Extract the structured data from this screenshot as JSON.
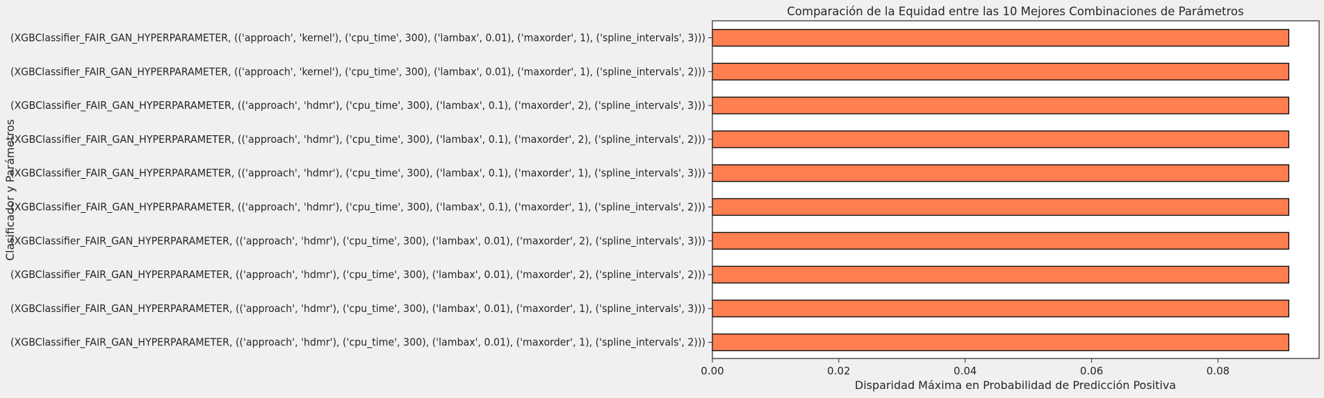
{
  "chart_data": {
    "type": "bar",
    "orientation": "horizontal",
    "title": "Comparación de la Equidad entre las 10 Mejores Combinaciones de Parámetros",
    "xlabel": "Disparidad Máxima en Probabilidad de Predicción Positiva",
    "ylabel": "Clasificador y Parámetros",
    "xlim": [
      0,
      0.096
    ],
    "xticks": [
      "0.00",
      "0.02",
      "0.04",
      "0.06",
      "0.08"
    ],
    "xtick_values": [
      0,
      0.02,
      0.04,
      0.06,
      0.08
    ],
    "grid": false,
    "bar_color": "#ff7f50",
    "bar_edge_color": "#000000",
    "categories": [
      "(XGBClassifier_FAIR_GAN_HYPERPARAMETER, (('approach', 'kernel'), ('cpu_time', 300), ('lambax', 0.01), ('maxorder', 1), ('spline_intervals', 3)))",
      "(XGBClassifier_FAIR_GAN_HYPERPARAMETER, (('approach', 'kernel'), ('cpu_time', 300), ('lambax', 0.01), ('maxorder', 1), ('spline_intervals', 2)))",
      "(XGBClassifier_FAIR_GAN_HYPERPARAMETER, (('approach', 'hdmr'), ('cpu_time', 300), ('lambax', 0.1), ('maxorder', 2), ('spline_intervals', 3)))",
      "(XGBClassifier_FAIR_GAN_HYPERPARAMETER, (('approach', 'hdmr'), ('cpu_time', 300), ('lambax', 0.1), ('maxorder', 2), ('spline_intervals', 2)))",
      "(XGBClassifier_FAIR_GAN_HYPERPARAMETER, (('approach', 'hdmr'), ('cpu_time', 300), ('lambax', 0.1), ('maxorder', 1), ('spline_intervals', 3)))",
      "(XGBClassifier_FAIR_GAN_HYPERPARAMETER, (('approach', 'hdmr'), ('cpu_time', 300), ('lambax', 0.1), ('maxorder', 1), ('spline_intervals', 2)))",
      "(XGBClassifier_FAIR_GAN_HYPERPARAMETER, (('approach', 'hdmr'), ('cpu_time', 300), ('lambax', 0.01), ('maxorder', 2), ('spline_intervals', 3)))",
      "(XGBClassifier_FAIR_GAN_HYPERPARAMETER, (('approach', 'hdmr'), ('cpu_time', 300), ('lambax', 0.01), ('maxorder', 2), ('spline_intervals', 2)))",
      "(XGBClassifier_FAIR_GAN_HYPERPARAMETER, (('approach', 'hdmr'), ('cpu_time', 300), ('lambax', 0.01), ('maxorder', 1), ('spline_intervals', 3)))",
      "(XGBClassifier_FAIR_GAN_HYPERPARAMETER, (('approach', 'hdmr'), ('cpu_time', 300), ('lambax', 0.01), ('maxorder', 1), ('spline_intervals', 2)))"
    ],
    "values": [
      0.0912,
      0.0912,
      0.0912,
      0.0912,
      0.0912,
      0.0912,
      0.0912,
      0.0912,
      0.0912,
      0.0912
    ]
  }
}
